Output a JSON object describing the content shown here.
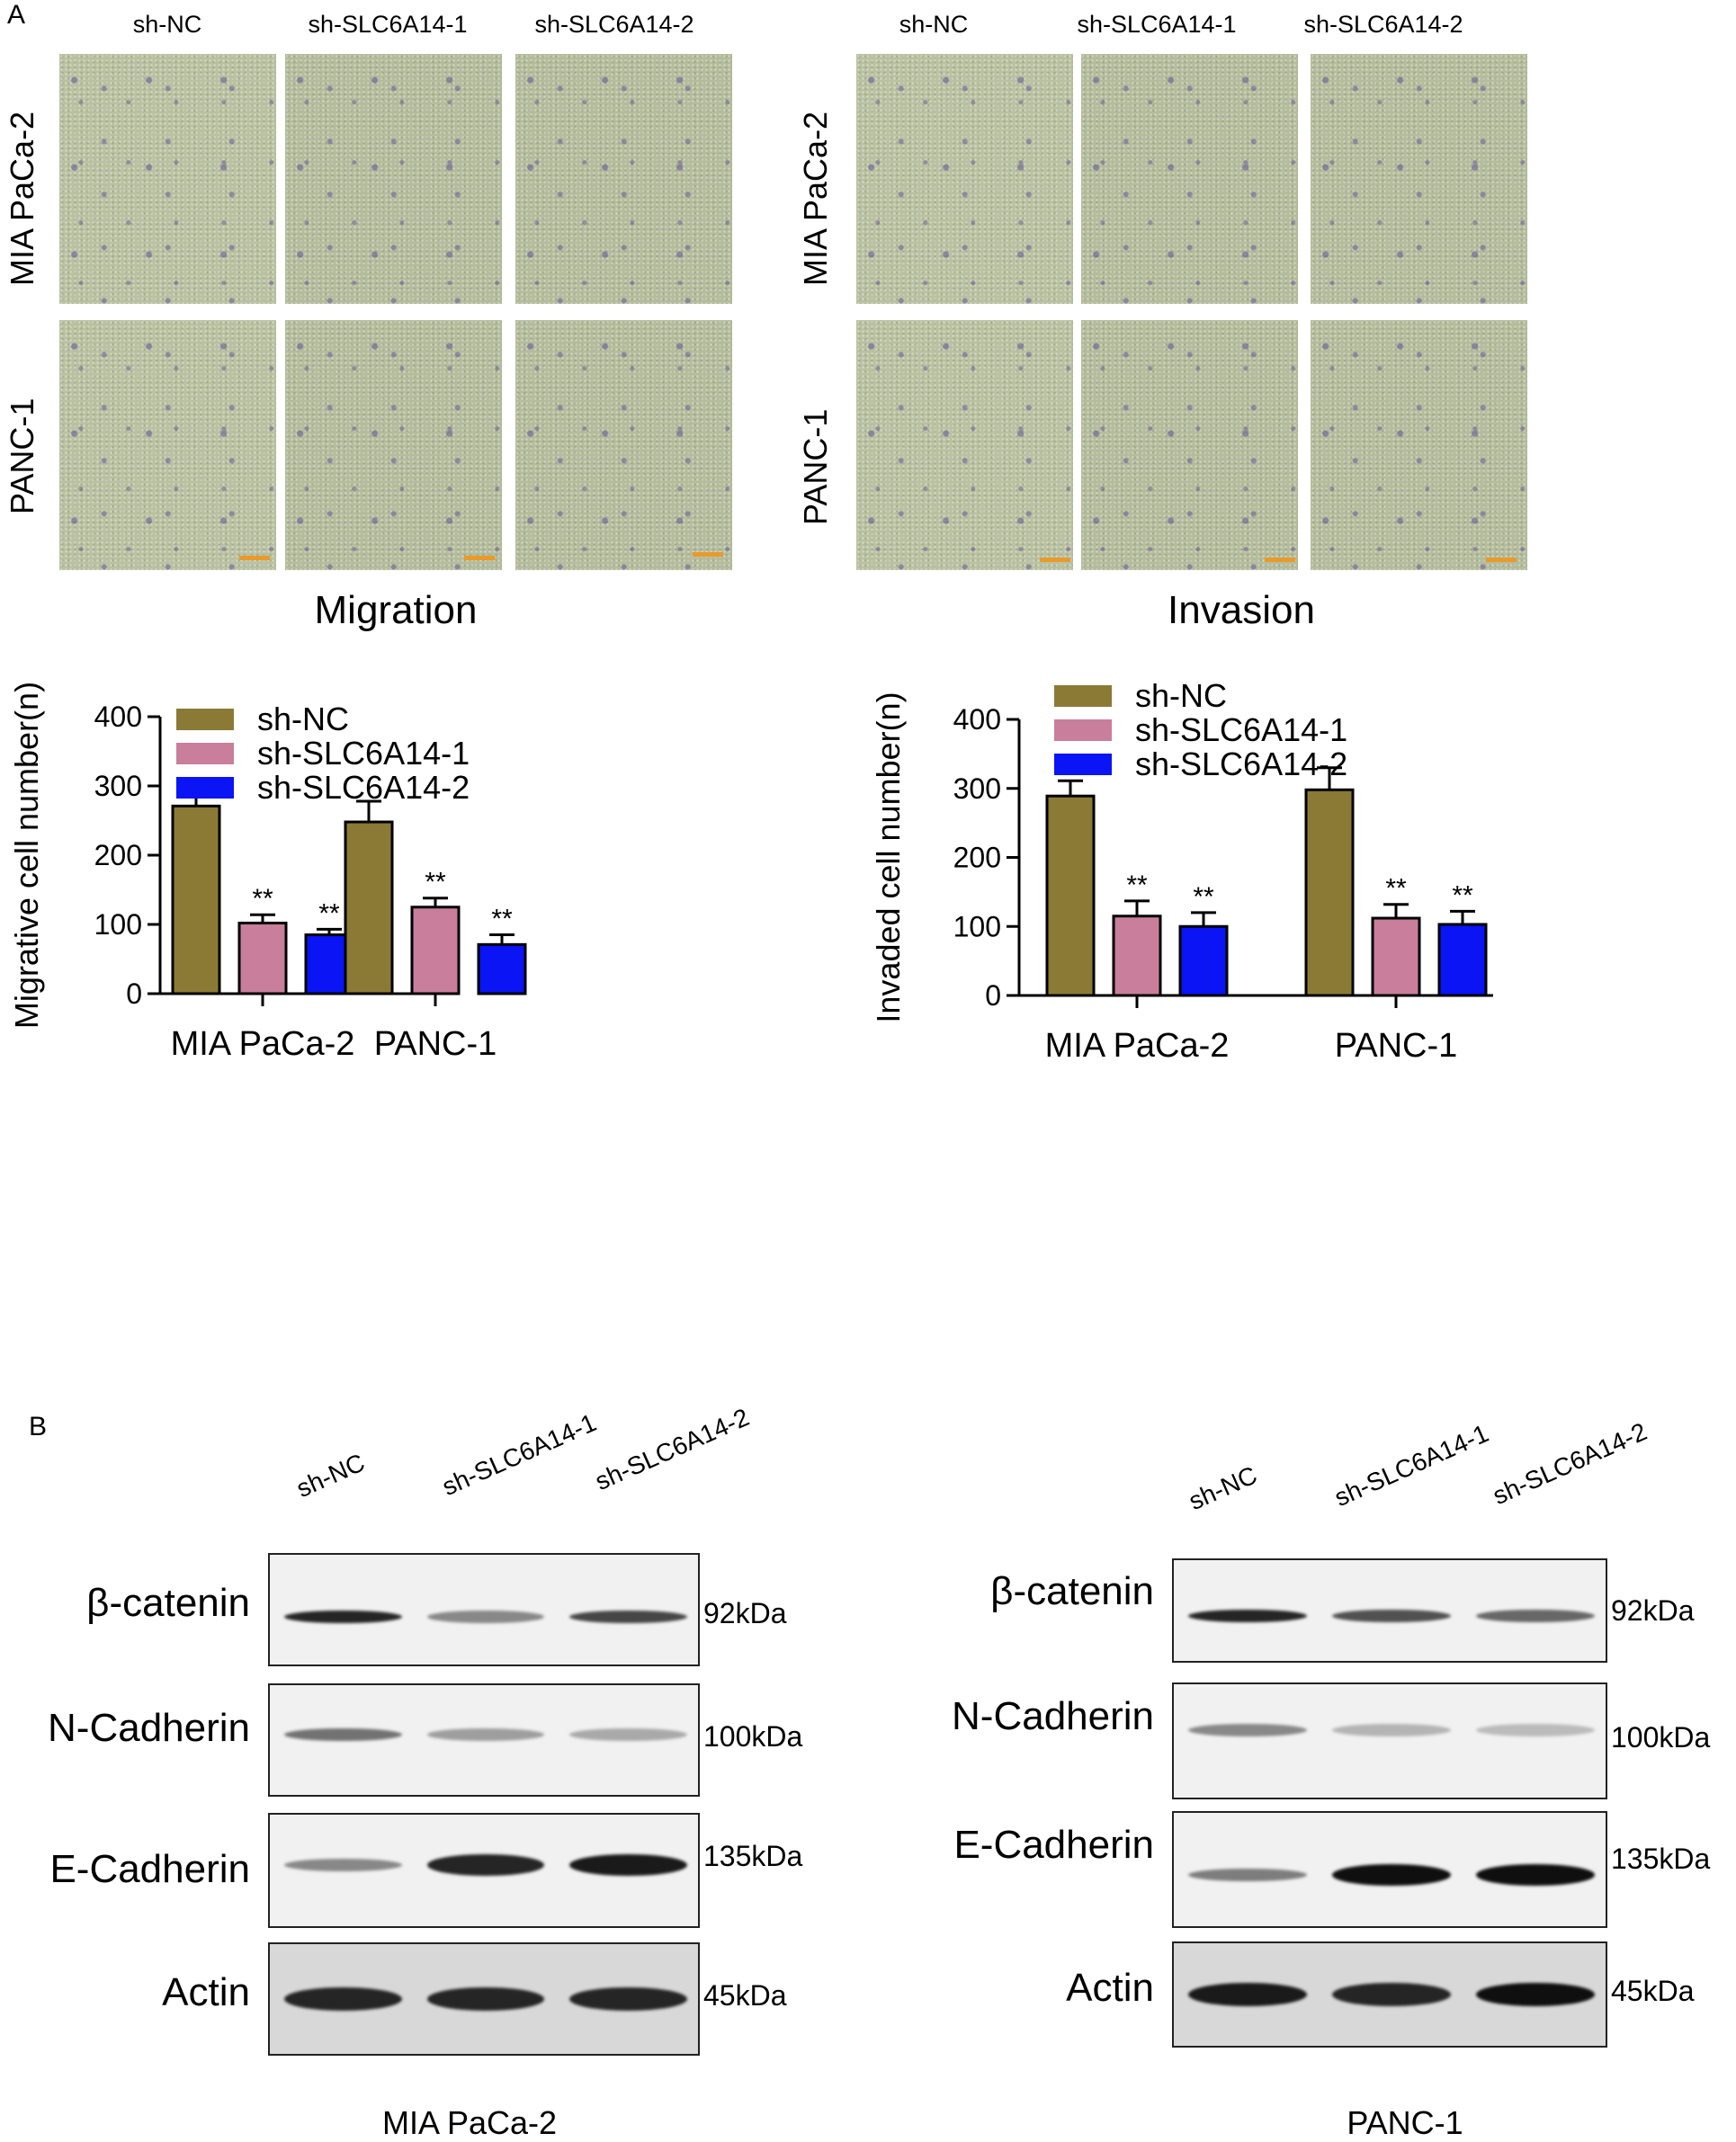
{
  "panel_labels": {
    "a": "A",
    "b": "B"
  },
  "panelA": {
    "migration": {
      "title": "Migration",
      "columns": [
        "sh-NC",
        "sh-SLC6A14-1",
        "sh-SLC6A14-2"
      ],
      "rows": [
        "MIA PaCa-2",
        "PANC-1"
      ]
    },
    "invasion": {
      "title": "Invasion",
      "columns": [
        "sh-NC",
        "sh-SLC6A14-1",
        "sh-SLC6A14-2"
      ],
      "rows": [
        "MIA PaCa-2",
        "PANC-1"
      ]
    }
  },
  "chart_data": [
    {
      "type": "bar",
      "categories": [
        "MIA PaCa-2",
        "PANC-1"
      ],
      "ylabel": "Migrative cell number(n)",
      "ylim": [
        0,
        400
      ],
      "yticks": [
        "0",
        "100",
        "200",
        "300",
        "400"
      ],
      "legend_position": "top-left",
      "series": [
        {
          "name": "sh-NC",
          "color": "#8b7a36",
          "values": [
            271,
            248
          ],
          "errors": [
            37,
            30
          ],
          "sig": [
            "",
            ""
          ]
        },
        {
          "name": "sh-SLC6A14-1",
          "color": "#c97e9c",
          "values": [
            102,
            125
          ],
          "errors": [
            12,
            13
          ],
          "sig": [
            "**",
            "**"
          ]
        },
        {
          "name": "sh-SLC6A14-2",
          "color": "#0a14f5",
          "values": [
            85,
            71
          ],
          "errors": [
            8,
            14
          ],
          "sig": [
            "**",
            "**"
          ]
        }
      ]
    },
    {
      "type": "bar",
      "categories": [
        "MIA PaCa-2",
        "PANC-1"
      ],
      "ylabel": "Invaded cell number(n)",
      "ylim": [
        0,
        400
      ],
      "yticks": [
        "0",
        "100",
        "200",
        "300",
        "400"
      ],
      "legend_position": "top",
      "series": [
        {
          "name": "sh-NC",
          "color": "#8b7a36",
          "values": [
            289,
            298
          ],
          "errors": [
            22,
            32
          ],
          "sig": [
            "",
            ""
          ]
        },
        {
          "name": "sh-SLC6A14-1",
          "color": "#c97e9c",
          "values": [
            115,
            112
          ],
          "errors": [
            22,
            20
          ],
          "sig": [
            "**",
            "**"
          ]
        },
        {
          "name": "sh-SLC6A14-2",
          "color": "#0a14f5",
          "values": [
            100,
            103
          ],
          "errors": [
            20,
            19
          ],
          "sig": [
            "**",
            "**"
          ]
        }
      ]
    }
  ],
  "panelB": {
    "left": {
      "cell_line": "MIA PaCa-2",
      "lanes": [
        "sh-NC",
        "sh-SLC6A14-1",
        "sh-SLC6A14-2"
      ],
      "blots": [
        {
          "protein": "β-catenin",
          "kda": "92kDa",
          "intensity": [
            0.9,
            0.45,
            0.75
          ]
        },
        {
          "protein": "N-Cadherin",
          "kda": "100kDa",
          "intensity": [
            0.55,
            0.35,
            0.3
          ]
        },
        {
          "protein": "E-Cadherin",
          "kda": "135kDa",
          "intensity": [
            0.45,
            0.9,
            0.95
          ]
        },
        {
          "protein": "Actin",
          "kda": "45kDa",
          "intensity": [
            0.9,
            0.9,
            0.9
          ]
        }
      ]
    },
    "right": {
      "cell_line": "PANC-1",
      "lanes": [
        "sh-NC",
        "sh-SLC6A14-1",
        "sh-SLC6A14-2"
      ],
      "blots": [
        {
          "protein": "β-catenin",
          "kda": "92kDa",
          "intensity": [
            0.9,
            0.7,
            0.6
          ]
        },
        {
          "protein": "N-Cadherin",
          "kda": "100kDa",
          "intensity": [
            0.45,
            0.25,
            0.22
          ]
        },
        {
          "protein": "E-Cadherin",
          "kda": "135kDa",
          "intensity": [
            0.5,
            1.0,
            1.0
          ]
        },
        {
          "protein": "Actin",
          "kda": "45kDa",
          "intensity": [
            0.95,
            0.9,
            1.0
          ]
        }
      ]
    }
  }
}
